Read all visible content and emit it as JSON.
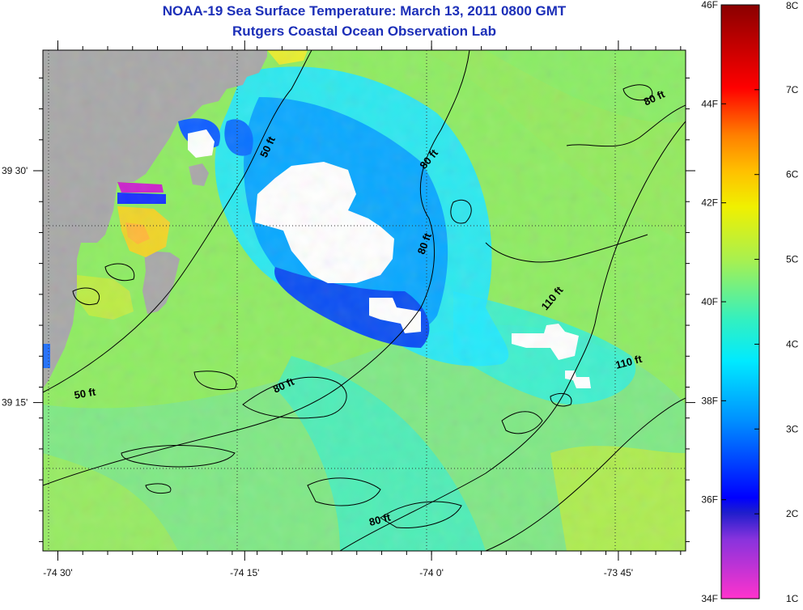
{
  "header": {
    "title": "NOAA-19 Sea Surface Temperature:  March 13, 2011 0800 GMT",
    "subtitle": "Rutgers Coastal Ocean Observation Lab"
  },
  "chart_data": {
    "type": "heatmap",
    "title": "NOAA-19 Sea Surface Temperature:  March 13, 2011 0800 GMT",
    "subtitle": "Rutgers Coastal Ocean Observation Lab",
    "xlim": [
      -74.52,
      -73.66
    ],
    "ylim": [
      39.09,
      39.63
    ],
    "x_ticks": [
      {
        "value": -74.5,
        "label": "-74 30'"
      },
      {
        "value": -74.25,
        "label": "-74 15'"
      },
      {
        "value": -74.0,
        "label": "-74 0'"
      },
      {
        "value": -73.75,
        "label": "-73 45'"
      }
    ],
    "y_ticks": [
      {
        "value": 39.5,
        "label": "39 30'"
      },
      {
        "value": 39.25,
        "label": "39 15'"
      }
    ],
    "grid": "dotted",
    "colorbar": {
      "range_c": [
        1,
        8
      ],
      "range_f": [
        34,
        46
      ],
      "celsius_ticks": [
        {
          "value": 1,
          "label": "1C"
        },
        {
          "value": 2,
          "label": "2C"
        },
        {
          "value": 3,
          "label": "3C"
        },
        {
          "value": 4,
          "label": "4C"
        },
        {
          "value": 5,
          "label": "5C"
        },
        {
          "value": 6,
          "label": "6C"
        },
        {
          "value": 7,
          "label": "7C"
        },
        {
          "value": 8,
          "label": "8C"
        }
      ],
      "fahrenheit_ticks": [
        {
          "value": 34,
          "label": "34F"
        },
        {
          "value": 36,
          "label": "36F"
        },
        {
          "value": 38,
          "label": "38F"
        },
        {
          "value": 40,
          "label": "40F"
        },
        {
          "value": 42,
          "label": "42F"
        },
        {
          "value": 44,
          "label": "44F"
        },
        {
          "value": 46,
          "label": "46F"
        }
      ]
    },
    "depth_contour_labels": [
      {
        "label": "50 ft",
        "lon": -74.215,
        "lat": 39.524,
        "angle": -65
      },
      {
        "label": "80 ft",
        "lon": -74.0,
        "lat": 39.51,
        "angle": -50
      },
      {
        "label": "80 ft",
        "lon": -73.7,
        "lat": 39.575,
        "angle": -25
      },
      {
        "label": "80 ft",
        "lon": -74.005,
        "lat": 39.42,
        "angle": -70
      },
      {
        "label": "110 ft",
        "lon": -73.835,
        "lat": 39.36,
        "angle": -50
      },
      {
        "label": "110 ft",
        "lon": -73.735,
        "lat": 39.29,
        "angle": -15
      },
      {
        "label": "50 ft",
        "lon": -74.463,
        "lat": 39.256,
        "angle": -10
      },
      {
        "label": "80 ft",
        "lon": -74.196,
        "lat": 39.265,
        "angle": -25
      },
      {
        "label": "80 ft",
        "lon": -74.068,
        "lat": 39.12,
        "angle": -15
      }
    ],
    "sst_regions_c": [
      {
        "region": "offshore background",
        "value": 4.6
      },
      {
        "region": "southeast corner",
        "value": 4.8
      },
      {
        "region": "central cold plume",
        "value": 3.0
      },
      {
        "region": "cold core near -74.05, 39.42",
        "value": 2.3
      },
      {
        "region": "inlet near -74.42, 39.45",
        "value": 5.5
      },
      {
        "region": "bay pocket near -74.43, 39.53",
        "value": 1.4
      }
    ]
  }
}
